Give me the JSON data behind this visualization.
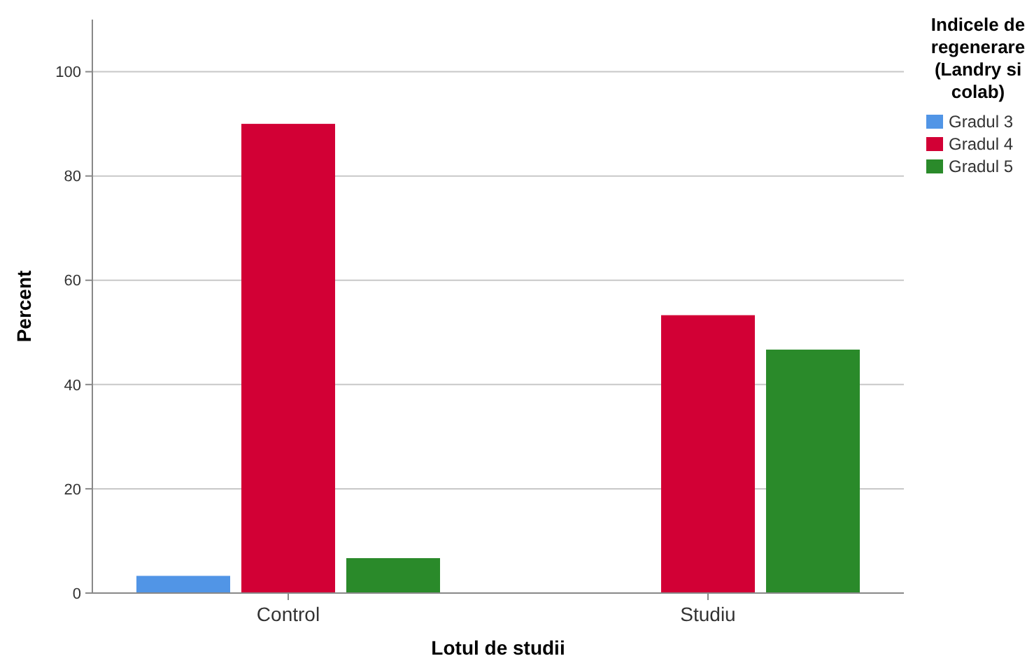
{
  "chart_data": {
    "type": "bar",
    "xlabel": "Lotul de studii",
    "ylabel": "Percent",
    "legend_title": "Indicele de regenerare (Landry si colab)",
    "categories": [
      "Control",
      "Studiu"
    ],
    "series": [
      {
        "name": "Gradul 3",
        "color": "#5195e6",
        "values": [
          3.3,
          null
        ]
      },
      {
        "name": "Gradul 4",
        "color": "#d20035",
        "values": [
          90,
          53.3
        ]
      },
      {
        "name": "Gradul 5",
        "color": "#2a8a2a",
        "values": [
          6.7,
          46.7
        ]
      }
    ],
    "ylim": [
      0,
      110
    ],
    "yticks": [
      0,
      20,
      40,
      60,
      80,
      100
    ],
    "grid": "y",
    "legend": "right"
  }
}
